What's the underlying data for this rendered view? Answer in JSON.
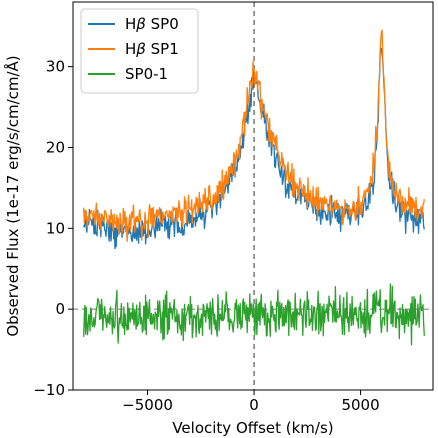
{
  "chart_data": {
    "type": "line",
    "title": "",
    "xlabel": "Velocity Offset (km/s)",
    "ylabel": "Observed Flux (1e-17 erg/s/cm/cm/Å)",
    "xlim": [
      -8500,
      8400
    ],
    "ylim": [
      -10,
      38
    ],
    "xticks": [
      -5000,
      0,
      5000
    ],
    "xtick_labels": [
      "−5000",
      "0",
      "5000"
    ],
    "yticks": [
      -10,
      0,
      10,
      20,
      30
    ],
    "ytick_labels": [
      "−10",
      "0",
      "10",
      "20",
      "30"
    ],
    "grid": false,
    "legend": "top-left",
    "reference_lines": [
      {
        "orientation": "vertical",
        "value": 0,
        "style": "dashed",
        "color": "#555555"
      },
      {
        "orientation": "horizontal",
        "value": 0,
        "style": "dashed",
        "color": "#888888"
      }
    ],
    "series": [
      {
        "name": "Hβ SP0",
        "legend_prefix": "H",
        "legend_symbol": "β",
        "legend_suffix": " SP0",
        "color": "#1f77b4",
        "x": [
          -8000,
          -7500,
          -7000,
          -6500,
          -6000,
          -5500,
          -5000,
          -4500,
          -4000,
          -3500,
          -3000,
          -2500,
          -2000,
          -1500,
          -1000,
          -700,
          -400,
          -200,
          0,
          200,
          400,
          700,
          1000,
          1500,
          2000,
          2500,
          3000,
          3500,
          4000,
          4500,
          5000,
          5300,
          5600,
          5800,
          5900,
          6000,
          6100,
          6200,
          6400,
          6700,
          7000,
          7300,
          7600,
          8000
        ],
        "y": [
          10.5,
          10.6,
          10,
          9.5,
          9.5,
          9.6,
          10,
          10.3,
          10.5,
          10.6,
          11,
          11.5,
          12.5,
          14,
          16.5,
          19,
          23,
          26,
          29,
          27,
          24,
          21.5,
          19,
          16,
          14,
          13,
          12.5,
          12,
          11.5,
          11.5,
          12,
          13,
          16,
          22,
          30,
          34,
          28,
          20,
          15,
          13,
          12,
          11.5,
          11,
          11
        ]
      },
      {
        "name": "Hβ SP1",
        "legend_prefix": "H",
        "legend_symbol": "β",
        "legend_suffix": " SP1",
        "color": "#ff7f0e",
        "x": [
          -8000,
          -7500,
          -7000,
          -6500,
          -6000,
          -5500,
          -5000,
          -4500,
          -4000,
          -3500,
          -3000,
          -2500,
          -2000,
          -1500,
          -1000,
          -700,
          -400,
          -200,
          0,
          200,
          400,
          700,
          1000,
          1500,
          2000,
          2500,
          3000,
          3500,
          4000,
          4500,
          5000,
          5300,
          5600,
          5800,
          5900,
          6000,
          6100,
          6200,
          6400,
          6700,
          7000,
          7300,
          7600,
          8000
        ],
        "y": [
          11.3,
          11.5,
          11.2,
          10.8,
          10.6,
          10.8,
          11,
          11.2,
          11.5,
          11.8,
          12.2,
          12.8,
          13.5,
          15,
          17.5,
          20,
          24,
          27,
          30,
          28,
          25,
          22.5,
          20,
          17,
          15,
          14,
          13.5,
          13,
          12.5,
          12.5,
          13,
          14,
          17,
          23,
          31,
          35,
          29,
          21,
          16,
          14,
          13,
          12.5,
          12,
          12
        ]
      },
      {
        "name": "SP0-1",
        "color": "#2ca02c",
        "x": [
          -8000,
          -7500,
          -7000,
          -6500,
          -6000,
          -5500,
          -5000,
          -4500,
          -4000,
          -3500,
          -3000,
          -2500,
          -2000,
          -1500,
          -1000,
          -500,
          0,
          500,
          1000,
          1500,
          2000,
          2500,
          3000,
          3500,
          4000,
          4500,
          5000,
          5500,
          6000,
          6500,
          7000,
          7500,
          8000
        ],
        "y": [
          -0.8,
          -1,
          -0.5,
          -1.2,
          -1.5,
          -1,
          -0.8,
          -0.6,
          -0.8,
          -0.9,
          -0.8,
          -1,
          -1,
          -0.9,
          -0.8,
          -0.7,
          -0.6,
          -0.7,
          -0.8,
          -0.9,
          -0.6,
          -0.5,
          -0.7,
          -0.6,
          -0.8,
          -0.7,
          -0.6,
          -0.5,
          -0.5,
          -0.6,
          -0.8,
          -0.7,
          -0.6
        ]
      }
    ]
  }
}
